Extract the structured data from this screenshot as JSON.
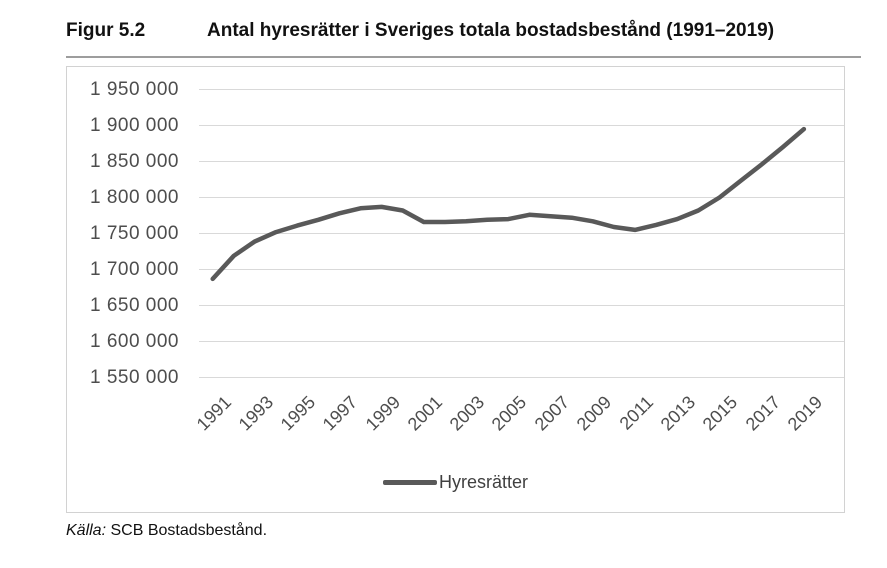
{
  "figure": {
    "label": "Figur 5.2",
    "title": "Antal hyresrätter i Sveriges totala bostadsbestånd (1991–2019)",
    "source_prefix": "Källa:",
    "source_text": " SCB Bostadsbestånd."
  },
  "legend": {
    "label": "Hyresrätter"
  },
  "colors": {
    "line": "#595959",
    "gridline": "#d9d9d9",
    "tick_text": "#4d4d4d",
    "frame_border": "#d2d2d2",
    "title_text": "#111111"
  },
  "chart_data": {
    "type": "line",
    "title": "Antal hyresrätter i Sveriges totala bostadsbestånd (1991–2019)",
    "x": [
      1991,
      1992,
      1993,
      1994,
      1995,
      1996,
      1997,
      1998,
      1999,
      2000,
      2001,
      2002,
      2003,
      2004,
      2005,
      2006,
      2007,
      2008,
      2009,
      2010,
      2011,
      2012,
      2013,
      2014,
      2015,
      2016,
      2017,
      2018,
      2019
    ],
    "series": [
      {
        "name": "Hyresrätter",
        "values": [
          1687000,
          1719000,
          1739000,
          1752000,
          1761000,
          1769000,
          1778000,
          1785000,
          1787000,
          1782000,
          1766000,
          1766000,
          1767000,
          1769000,
          1770000,
          1776000,
          1774000,
          1772000,
          1767000,
          1759000,
          1755000,
          1762000,
          1770000,
          1782000,
          1800000,
          1823000,
          1846000,
          1870000,
          1895000
        ]
      }
    ],
    "ylim": [
      1550000,
      1950000
    ],
    "y_tick_step": 50000,
    "y_tick_labels": [
      "1 950 000",
      "1 900 000",
      "1 850 000",
      "1 800 000",
      "1 750 000",
      "1 700 000",
      "1 650 000",
      "1 600 000",
      "1 550 000"
    ],
    "x_tick_labels": [
      "1991",
      "1993",
      "1995",
      "1997",
      "1999",
      "2001",
      "2003",
      "2005",
      "2007",
      "2009",
      "2011",
      "2013",
      "2015",
      "2017",
      "2019"
    ],
    "grid": "horizontal",
    "legend_position": "bottom",
    "xlabel": "",
    "ylabel": ""
  }
}
